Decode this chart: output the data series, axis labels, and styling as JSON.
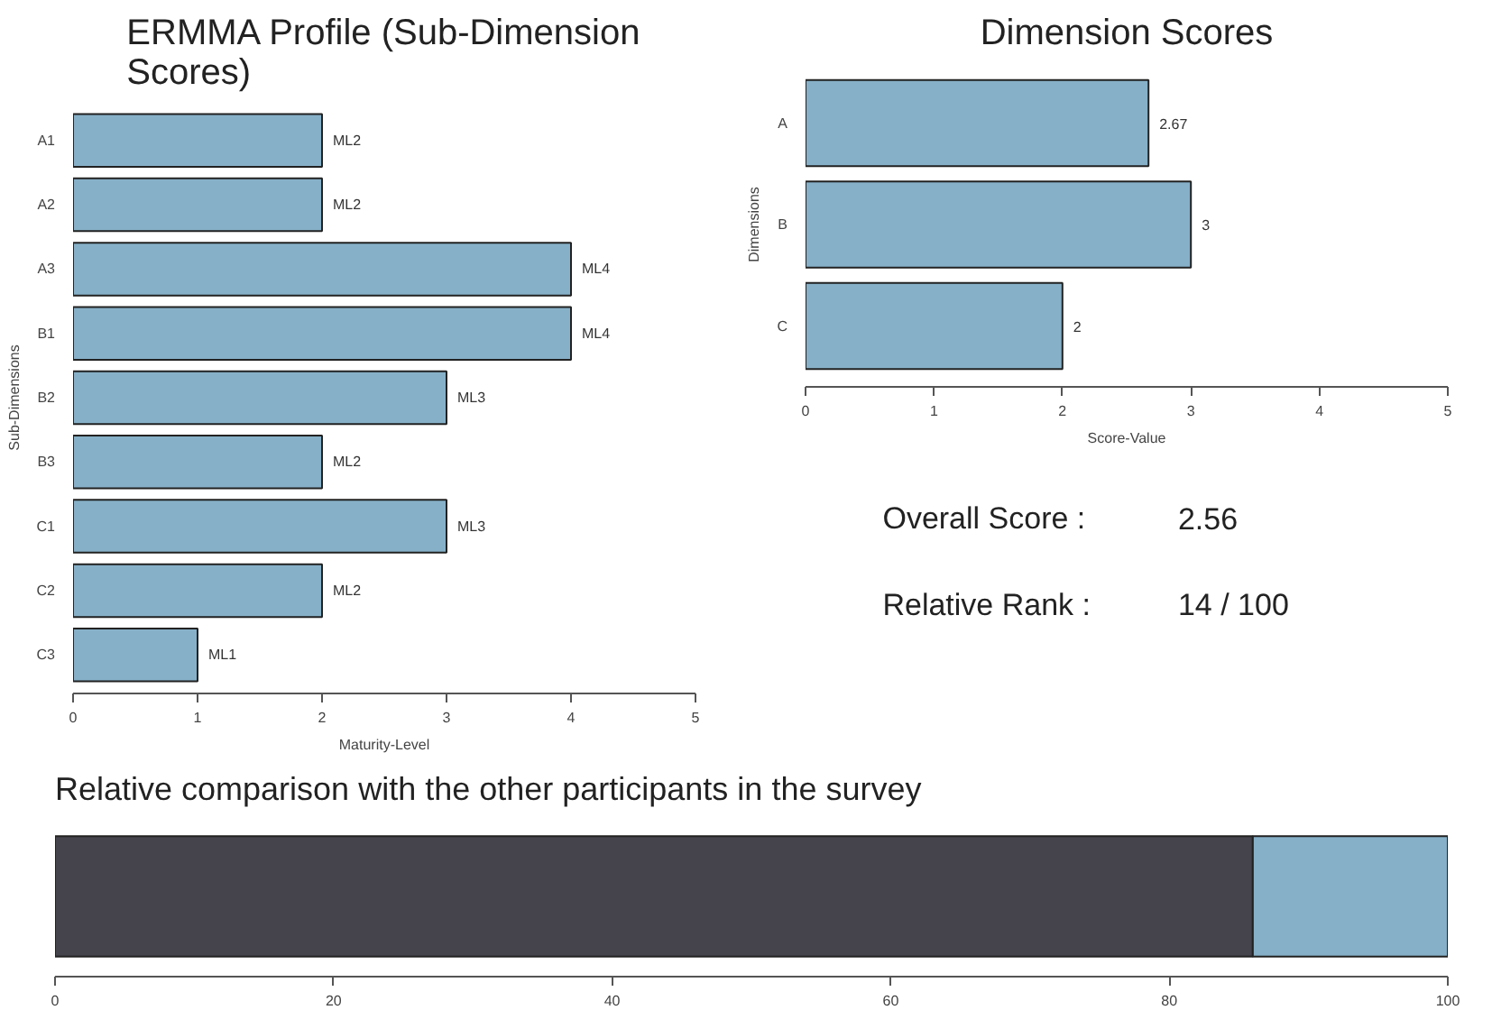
{
  "chart_data": [
    {
      "type": "bar",
      "orientation": "horizontal",
      "title": "ERMMA Profile (Sub-Dimension Scores)",
      "xlabel": "Maturity-Level",
      "ylabel": "Sub-Dimensions",
      "categories": [
        "A1",
        "A2",
        "A3",
        "B1",
        "B2",
        "B3",
        "C1",
        "C2",
        "C3"
      ],
      "values": [
        2,
        2,
        4,
        4,
        3,
        2,
        3,
        2,
        1
      ],
      "value_labels": [
        "ML2",
        "ML2",
        "ML4",
        "ML4",
        "ML3",
        "ML2",
        "ML3",
        "ML2",
        "ML1"
      ],
      "color": "#86b0c8",
      "xlim": [
        0,
        5
      ],
      "xticks": [
        0,
        1,
        2,
        3,
        4,
        5
      ]
    },
    {
      "type": "bar",
      "orientation": "horizontal",
      "title": "Dimension Scores",
      "xlabel": "Score-Value",
      "ylabel": "Dimensions",
      "categories": [
        "A",
        "B",
        "C"
      ],
      "values": [
        2.67,
        3,
        2
      ],
      "data_labels": true,
      "color": "#86b0c8",
      "xlim": [
        0,
        5
      ],
      "xticks": [
        0,
        1,
        2,
        3,
        4,
        5
      ]
    },
    {
      "type": "other",
      "annotations": [
        "Overall Score :",
        "2.56",
        "Relative Rank :",
        "14 / 100"
      ]
    },
    {
      "type": "bar",
      "orientation": "horizontal",
      "stacked": true,
      "title": "Relative comparison with the other participants in the survey",
      "categories": [
        null
      ],
      "series": [
        {
          "color": "#45434c",
          "values": [
            86
          ]
        },
        {
          "color": "#86b0c8",
          "values": [
            14
          ]
        }
      ],
      "xlim": [
        0,
        100
      ],
      "xticks": [
        0,
        20,
        40,
        60,
        80,
        100
      ]
    }
  ]
}
